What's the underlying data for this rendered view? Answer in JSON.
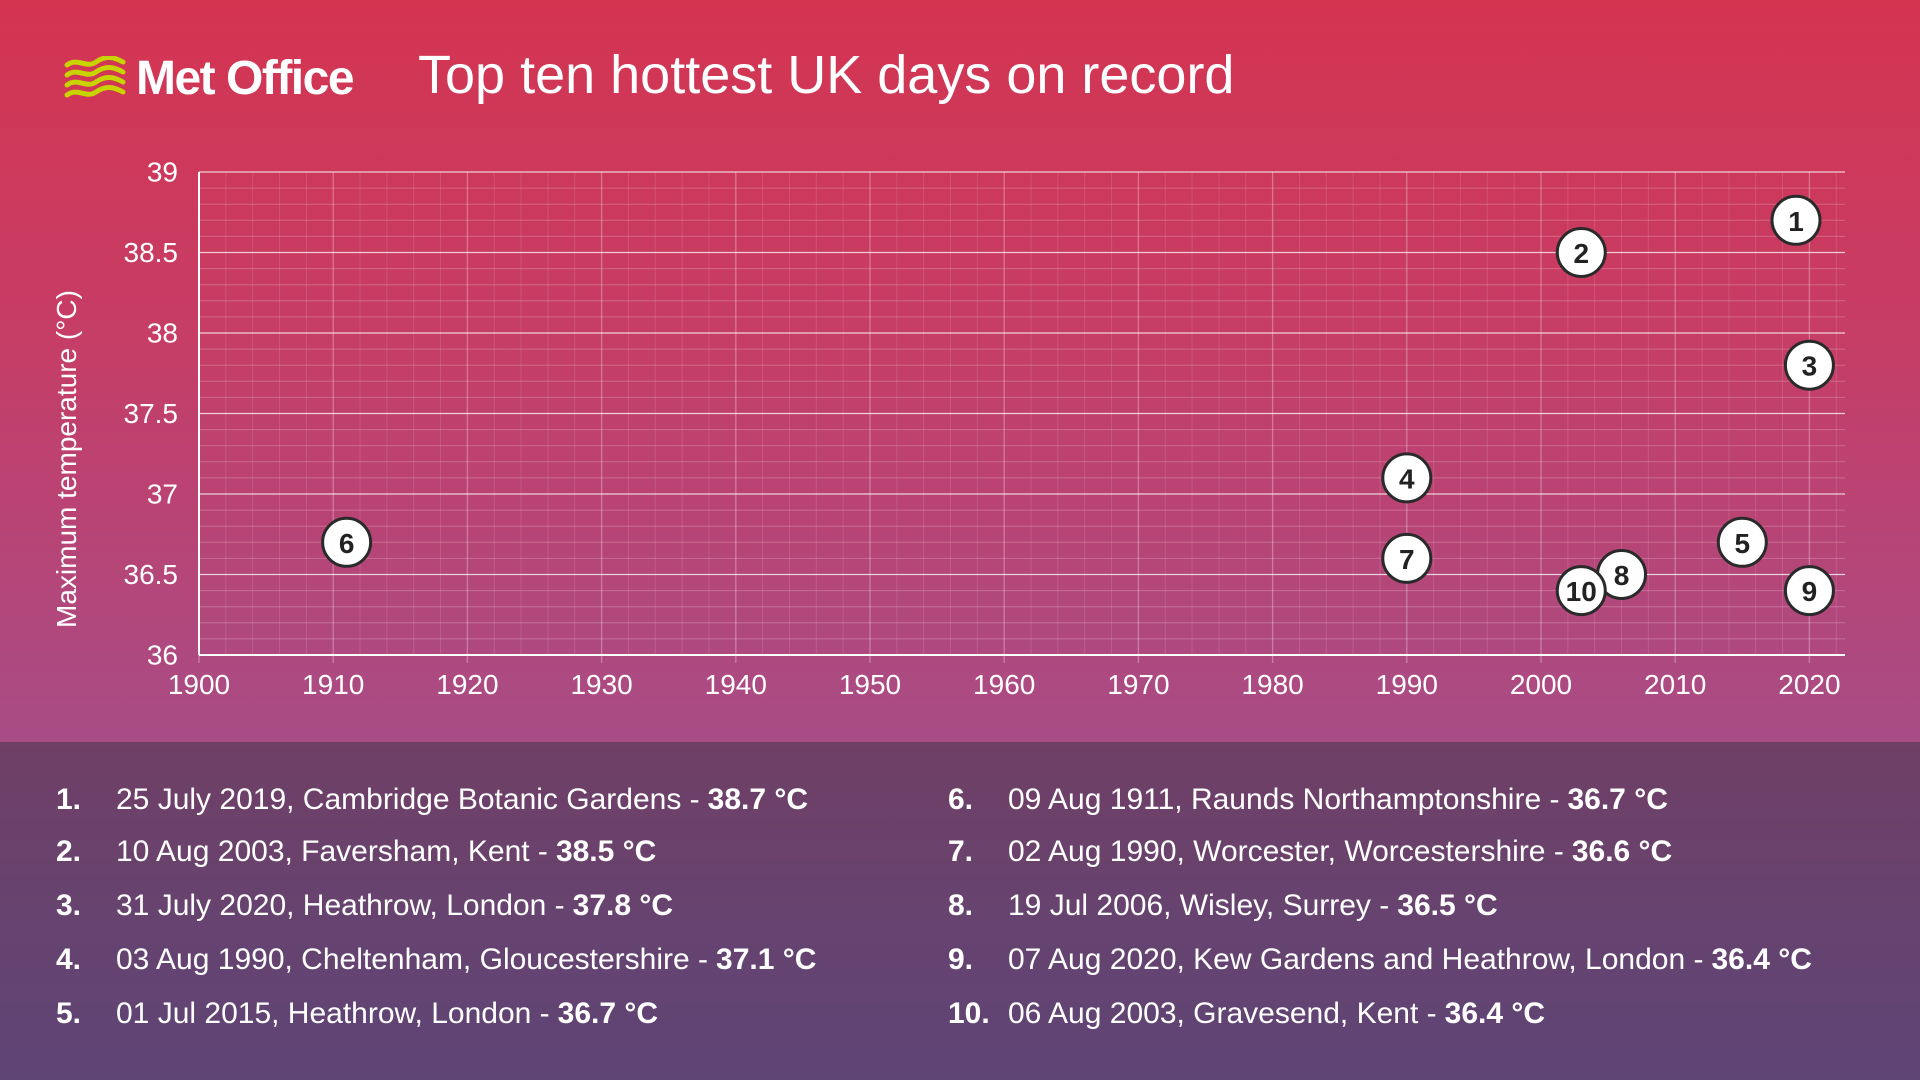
{
  "header": {
    "brand": "Met Office",
    "title": "Top ten hottest UK days on record"
  },
  "colors": {
    "top_gradient_start": "#d43450",
    "top_gradient_end": "#a84c86",
    "bottom_background": "#67436f",
    "logo_accent": "#c8d400",
    "marker_fill": "#ffffff",
    "marker_stroke": "#2a2a2a",
    "grid_major": "#ffffff",
    "text": "#ffffff"
  },
  "chart_data": {
    "type": "scatter",
    "title": "Top ten hottest UK days on record",
    "xlabel": "",
    "ylabel": "Maximum temperature (°C)",
    "xlim": [
      1900,
      2023
    ],
    "ylim": [
      36,
      39
    ],
    "xticks": [
      1900,
      1910,
      1920,
      1930,
      1940,
      1950,
      1960,
      1970,
      1980,
      1990,
      2000,
      2010,
      2020
    ],
    "yticks": [
      "36",
      "36.5",
      "37",
      "37.5",
      "38",
      "38.5",
      "39"
    ],
    "grid": true,
    "points": [
      {
        "label": "1",
        "x": 2019,
        "y": 38.7
      },
      {
        "label": "2",
        "x": 2003,
        "y": 38.5
      },
      {
        "label": "3",
        "x": 2020,
        "y": 37.8
      },
      {
        "label": "4",
        "x": 1990,
        "y": 37.1
      },
      {
        "label": "5",
        "x": 2015,
        "y": 36.7
      },
      {
        "label": "6",
        "x": 1911,
        "y": 36.7
      },
      {
        "label": "7",
        "x": 1990,
        "y": 36.6
      },
      {
        "label": "8",
        "x": 2006,
        "y": 36.5
      },
      {
        "label": "9",
        "x": 2020,
        "y": 36.4
      },
      {
        "label": "10",
        "x": 2003,
        "y": 36.4
      }
    ]
  },
  "legend": {
    "items": [
      {
        "num": "1.",
        "text": "25 July 2019, Cambridge Botanic Gardens -",
        "temp": "38.7 °C"
      },
      {
        "num": "2.",
        "text": "10 Aug 2003, Faversham, Kent -",
        "temp": "38.5 °C"
      },
      {
        "num": "3.",
        "text": "31 July 2020, Heathrow, London -",
        "temp": "37.8 °C"
      },
      {
        "num": "4.",
        "text": "03 Aug 1990, Cheltenham, Gloucestershire -",
        "temp": "37.1 °C"
      },
      {
        "num": "5.",
        "text": "01 Jul 2015, Heathrow, London -",
        "temp": "36.7 °C"
      },
      {
        "num": "6.",
        "text": "09 Aug 1911, Raunds Northamptonshire -",
        "temp": "36.7 °C"
      },
      {
        "num": "7.",
        "text": "02 Aug 1990, Worcester, Worcestershire -",
        "temp": "36.6 °C"
      },
      {
        "num": "8.",
        "text": "19 Jul 2006, Wisley, Surrey -",
        "temp": "36.5 °C"
      },
      {
        "num": "9.",
        "text": "07 Aug 2020, Kew Gardens and Heathrow, London -",
        "temp": "36.4 °C"
      },
      {
        "num": "10.",
        "text": "06 Aug 2003, Gravesend, Kent -",
        "temp": "36.4 °C"
      }
    ]
  }
}
